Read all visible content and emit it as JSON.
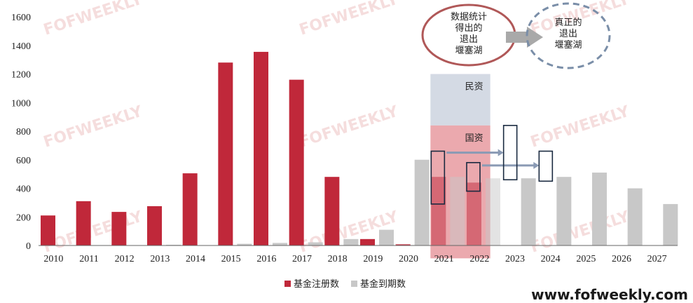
{
  "chart_data": {
    "type": "bar",
    "categories": [
      "2010",
      "2011",
      "2012",
      "2013",
      "2014",
      "2015",
      "2016",
      "2017",
      "2018",
      "2019",
      "2020",
      "2021",
      "2022",
      "2023",
      "2024",
      "2025",
      "2026",
      "2027"
    ],
    "ylim": [
      0,
      1600
    ],
    "yticks": [
      0,
      200,
      400,
      600,
      800,
      1000,
      1200,
      1400,
      1600
    ],
    "series": [
      {
        "name": "基金注册数",
        "color": "#c0283a",
        "values": [
          210,
          310,
          235,
          275,
          505,
          1280,
          1355,
          1160,
          480,
          45,
          8,
          480,
          440,
          null,
          null,
          null,
          null,
          null
        ]
      },
      {
        "name": "基金到期数",
        "color": "#c8c8c8",
        "values": [
          null,
          null,
          null,
          5,
          null,
          12,
          18,
          22,
          45,
          110,
          600,
          480,
          470,
          470,
          480,
          510,
          400,
          290
        ]
      }
    ],
    "zones": [
      {
        "label": "民资",
        "from_year": "2021",
        "to_year": "2022",
        "y_from": 840,
        "y_to": 1200,
        "color": "#ccd3df"
      },
      {
        "label": "国资",
        "from_year": "2021",
        "to_year": "2022",
        "y_from": -90,
        "y_to": 840,
        "color": "#e89aa0"
      }
    ],
    "callouts": [
      {
        "text_lines": [
          "数据统计",
          "得出的",
          "退出",
          "堰塞湖"
        ],
        "style": "solid",
        "color": "#b05858"
      },
      {
        "text_lines": [
          "真正的",
          "退出",
          "堰塞湖"
        ],
        "style": "dashed",
        "color": "#7a8ea8"
      }
    ],
    "annotation_boxes": [
      {
        "year": "2021",
        "y_from": 290,
        "y_to": 660
      },
      {
        "year": "2022",
        "y_from": 380,
        "y_to": 580
      },
      {
        "year": "2023",
        "y_from": 460,
        "y_to": 840
      },
      {
        "year": "2024",
        "y_from": 450,
        "y_to": 660
      }
    ],
    "shift_arrows": [
      {
        "from_year": "2021",
        "to_year": "2023",
        "y": 650
      },
      {
        "from_year": "2022",
        "to_year": "2024",
        "y": 560
      }
    ],
    "legend_position": "bottom-center",
    "grid": false
  },
  "watermark": "FOFWEEKLY",
  "site_url": "www.fofweekly.com",
  "colors": {
    "arrow": "#8a9ab4",
    "box_stroke": "#1a2a40"
  }
}
